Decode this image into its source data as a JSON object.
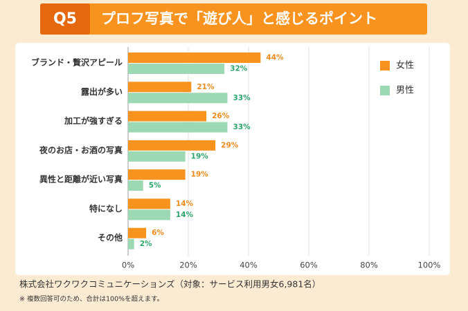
{
  "header": {
    "tag": "Q5",
    "title": "プロフ写真で「遊び人」と感じるポイント"
  },
  "chart_data": {
    "type": "hbar",
    "categories": [
      "ブランド・贅沢アピール",
      "露出が多い",
      "加工が強すぎる",
      "夜のお店・お酒の写真",
      "異性と距離が近い写真",
      "特になし",
      "その他"
    ],
    "series": [
      {
        "name": "女性",
        "color": "#f7931e",
        "label_color": "#ef8a1a",
        "values": [
          44,
          21,
          26,
          29,
          19,
          14,
          6
        ],
        "value_labels": [
          "44%",
          "21%",
          "26%",
          "29%",
          "19%",
          "14%",
          "6%"
        ]
      },
      {
        "name": "男性",
        "color": "#9dd8b4",
        "label_color": "#2ba56b",
        "values": [
          32,
          33,
          33,
          19,
          5,
          14,
          2
        ],
        "value_labels": [
          "32%",
          "33%",
          "33%",
          "19%",
          "5%",
          "14%",
          "2%"
        ]
      }
    ],
    "xlim": [
      0,
      100
    ],
    "xticks": [
      {
        "value": 0,
        "label": "0%"
      },
      {
        "value": 20,
        "label": "20%"
      },
      {
        "value": 40,
        "label": "40%"
      },
      {
        "value": 60,
        "label": "60%"
      },
      {
        "value": 80,
        "label": "80%"
      },
      {
        "value": 100,
        "label": "100%"
      }
    ],
    "grid": true,
    "legend": "top-right"
  },
  "footer": {
    "source": "株式会社ワクワクコミュニケーションズ（対象：サービス利用男女6,981名）",
    "note": "※ 複数回答可のため、合計は100%を超えます。"
  }
}
